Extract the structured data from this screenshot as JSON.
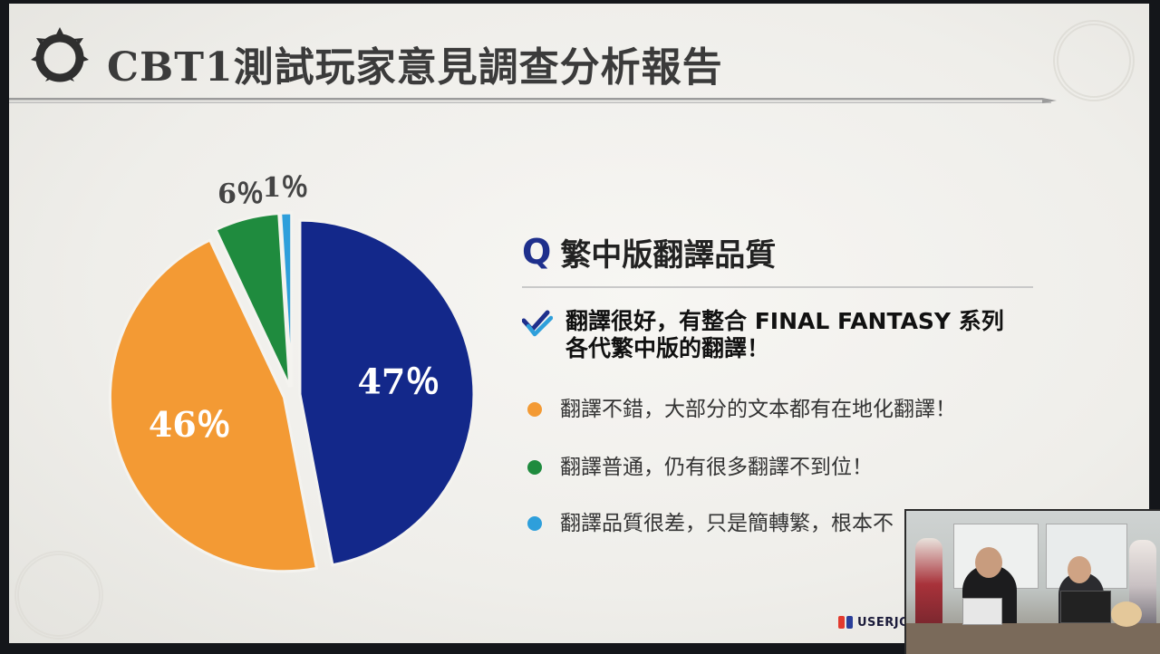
{
  "slide": {
    "title": "CBT1測試玩家意見調查分析報告",
    "logo_text": "USERJOY"
  },
  "question": {
    "mark": "Q",
    "text": "繁中版翻譯品質"
  },
  "options": [
    {
      "line1": "翻譯很好，有整合 FINAL FANTASY 系列",
      "line2": "各代繁中版的翻譯！",
      "color": "#1e2f8c",
      "selected": true
    },
    {
      "line1": "翻譯不錯，大部分的文本都有在地化翻譯！",
      "color": "#f39a34",
      "selected": false
    },
    {
      "line1": "翻譯普通，仍有很多翻譯不到位！",
      "color": "#1f8b3e",
      "selected": false
    },
    {
      "line1": "翻譯品質很差，只是簡轉繁，根本不",
      "color": "#2e9fdb",
      "selected": false
    }
  ],
  "chart_data": {
    "type": "pie",
    "title": "",
    "slices": [
      {
        "value": 47,
        "label": "47％",
        "color": "#13288a",
        "label_position": "inside"
      },
      {
        "value": 46,
        "label": "46％",
        "color": "#f39a34",
        "label_position": "inside"
      },
      {
        "value": 6,
        "label": "6％",
        "color": "#1f8b3e",
        "label_position": "outside"
      },
      {
        "value": 1,
        "label": "1％",
        "color": "#2e9fdb",
        "label_position": "outside"
      }
    ],
    "start": "top",
    "direction": "clockwise",
    "exploded": true
  }
}
